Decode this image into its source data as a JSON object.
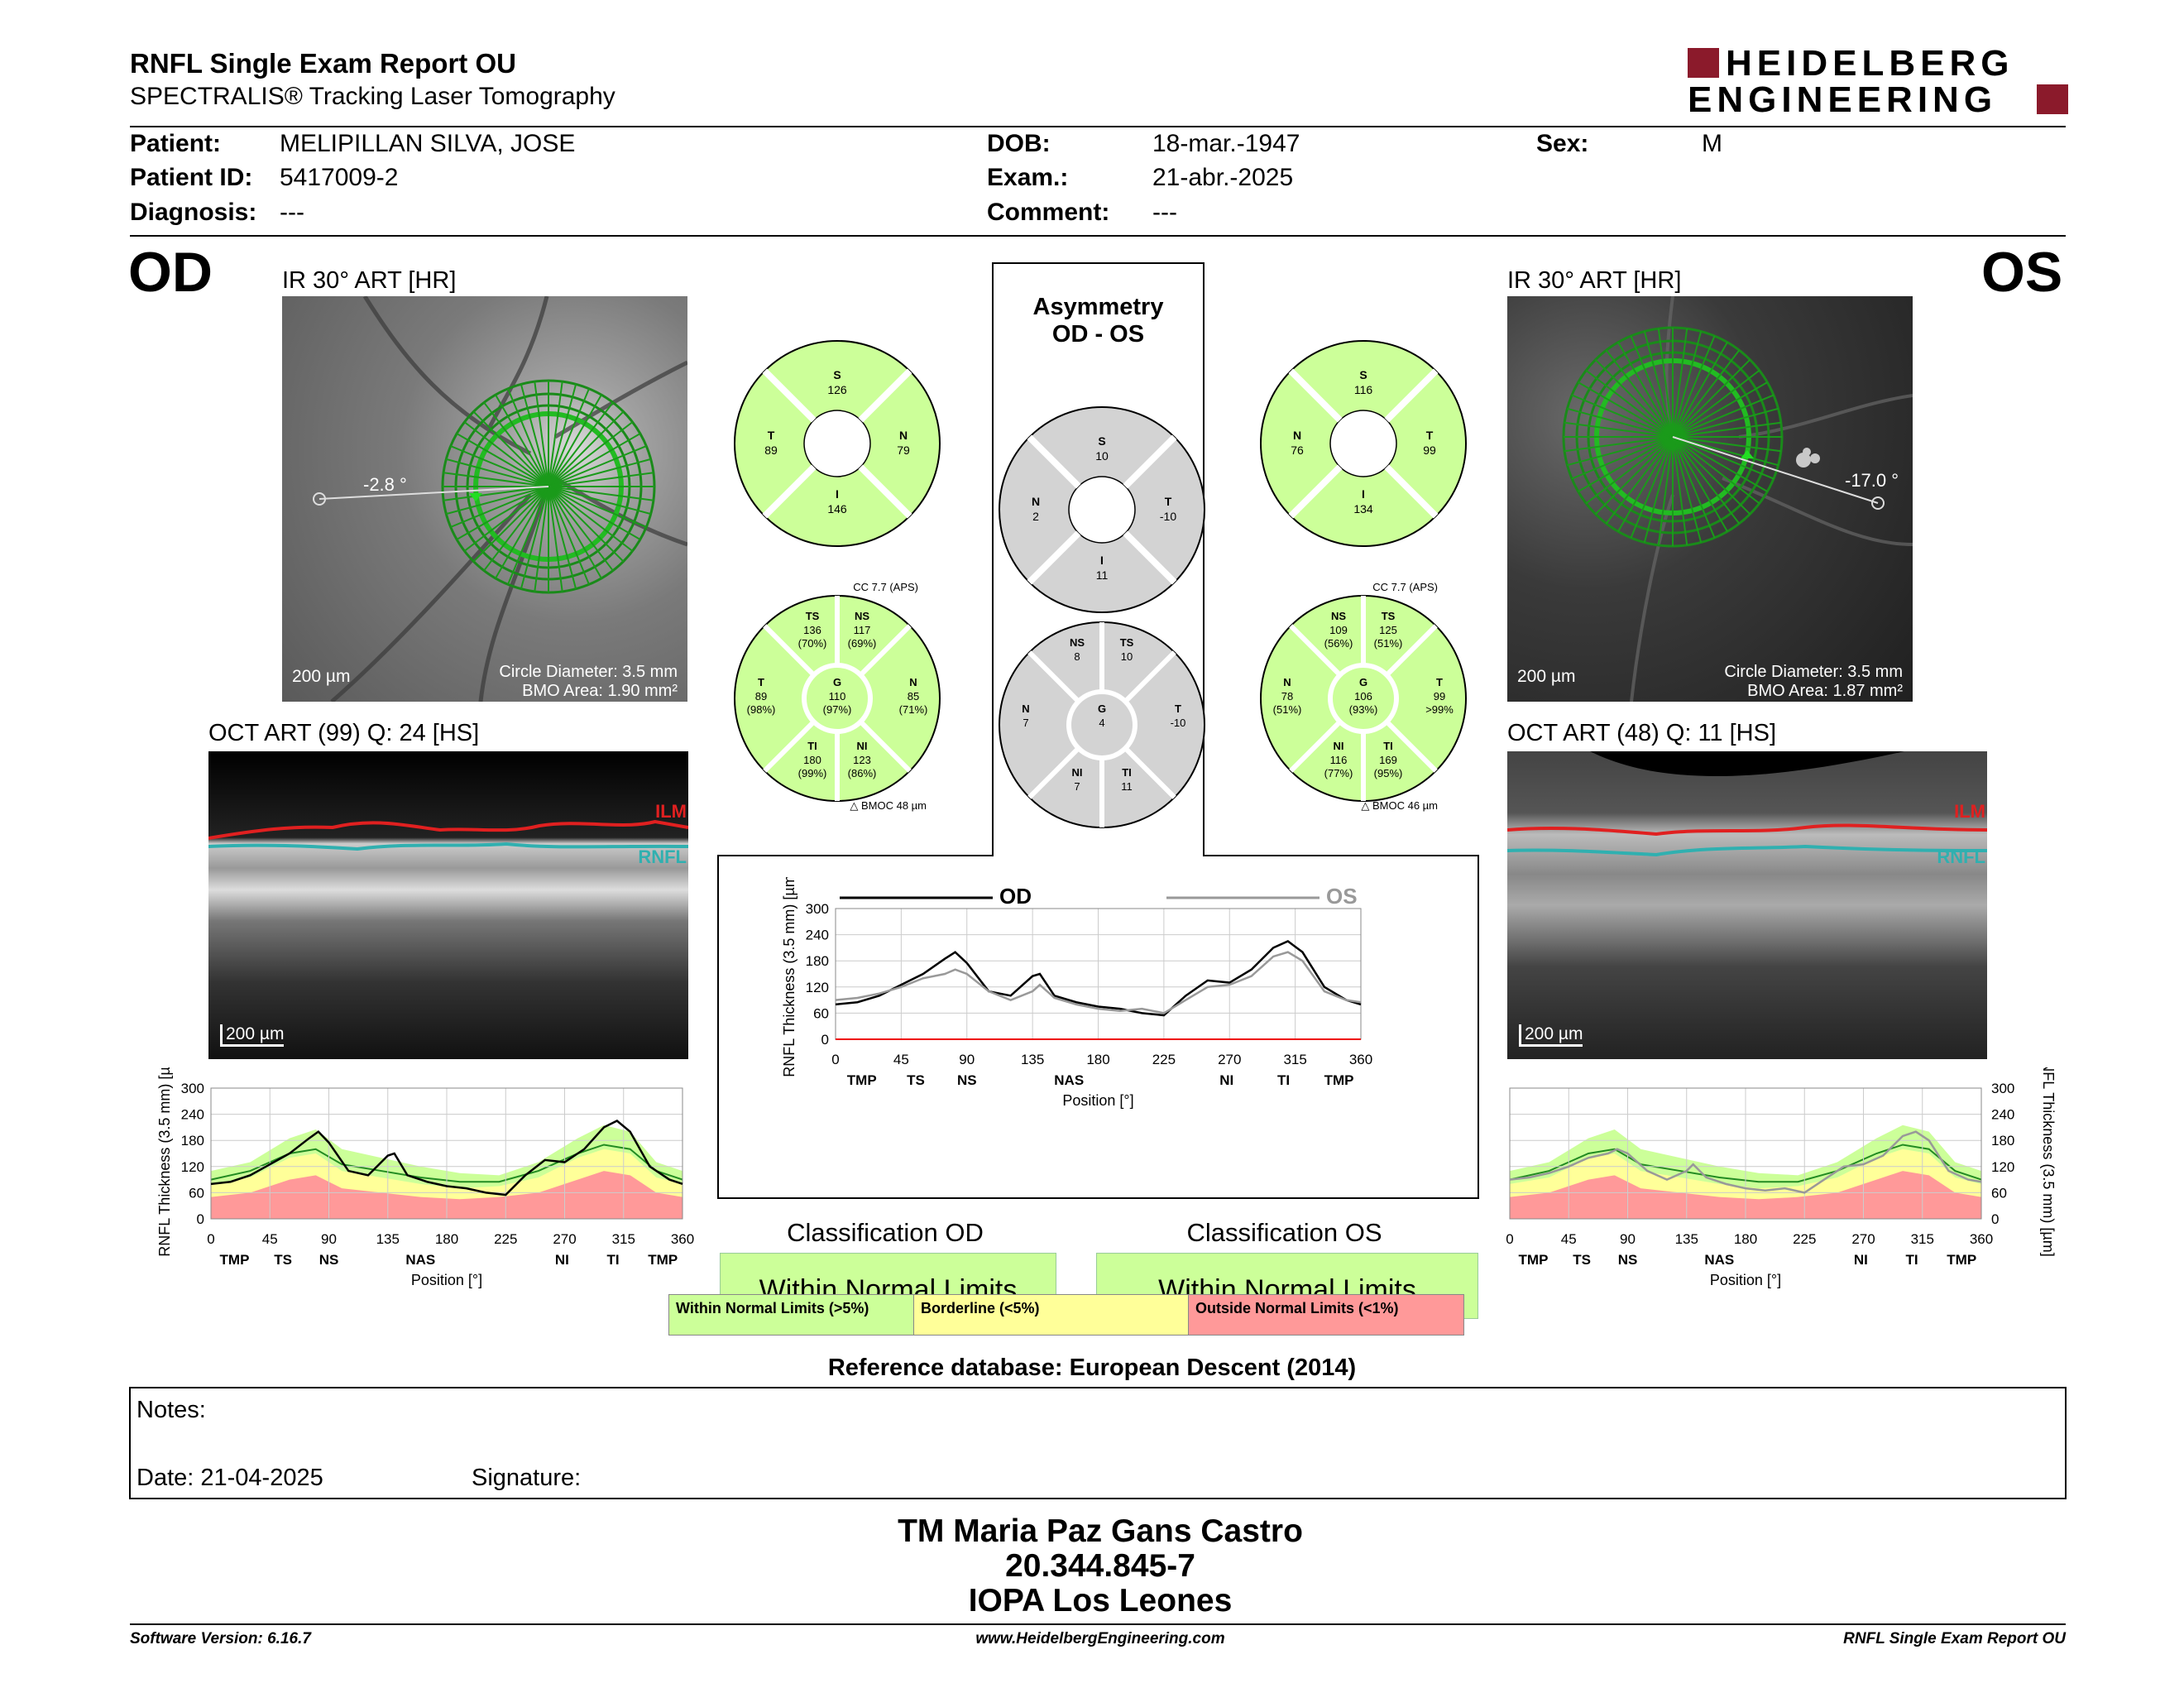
{
  "header": {
    "title": "RNFL Single Exam Report OU",
    "subtitle": "SPECTRALIS® Tracking Laser Tomography",
    "logo_line1": "HEIDELBERG",
    "logo_line2": "ENGINEERING"
  },
  "patient": {
    "patient_label": "Patient:",
    "patient_value": "MELIPILLAN SILVA, JOSE",
    "id_label": "Patient ID:",
    "id_value": "5417009-2",
    "diag_label": "Diagnosis:",
    "diag_value": "---",
    "dob_label": "DOB:",
    "dob_value": "18-mar.-1947",
    "exam_label": "Exam.:",
    "exam_value": "21-abr.-2025",
    "comment_label": "Comment:",
    "comment_value": "---",
    "sex_label": "Sex:",
    "sex_value": "M"
  },
  "od": {
    "eye": "OD",
    "ir_title": "IR 30° ART [HR]",
    "angle": "-2.8 °",
    "scale": "200 µm",
    "circle_diameter": "Circle Diameter: 3.5 mm",
    "bmo_area": "BMO Area: 1.90 mm²",
    "oct_title": "OCT ART (99) Q: 24 [HS]",
    "oct_scale": "200 µm",
    "ilm": "ILM",
    "rnfl": "RNFL",
    "quad": {
      "S": "126",
      "T": "89",
      "N": "79",
      "I": "146"
    },
    "sectors": {
      "cc": "CC 7.7 (APS)",
      "TS": [
        "136",
        "(70%)"
      ],
      "NS": [
        "117",
        "(69%)"
      ],
      "T": [
        "89",
        "(98%)"
      ],
      "G": [
        "110",
        "(97%)"
      ],
      "N": [
        "85",
        "(71%)"
      ],
      "TI": [
        "180",
        "(99%)"
      ],
      "NI": [
        "123",
        "(86%)"
      ],
      "bmoc": "BMOC 48 µm"
    }
  },
  "os": {
    "eye": "OS",
    "ir_title": "IR 30° ART [HR]",
    "angle": "-17.0 °",
    "scale": "200 µm",
    "circle_diameter": "Circle Diameter: 3.5 mm",
    "bmo_area": "BMO Area: 1.87 mm²",
    "oct_title": "OCT ART (48) Q: 11 [HS]",
    "oct_scale": "200 µm",
    "ilm": "ILM",
    "rnfl": "RNFL",
    "quad": {
      "S": "116",
      "T": "99",
      "N": "76",
      "I": "134"
    },
    "sectors": {
      "cc": "CC 7.7 (APS)",
      "NS": [
        "109",
        "(56%)"
      ],
      "TS": [
        "125",
        "(51%)"
      ],
      "N": [
        "78",
        "(51%)"
      ],
      "G": [
        "106",
        "(93%)"
      ],
      "T": [
        "99",
        ">99%"
      ],
      "NI": [
        "116",
        "(77%)"
      ],
      "TI": [
        "169",
        "(95%)"
      ],
      "bmoc": "BMOC 46 µm"
    }
  },
  "asymmetry": {
    "title1": "Asymmetry",
    "title2": "OD - OS",
    "quad": {
      "S": "10",
      "N": "2",
      "T": "-10",
      "I": "11"
    },
    "sectors": {
      "NS": "8",
      "TS": "10",
      "N": "7",
      "G": "4",
      "T": "-10",
      "NI": "7",
      "TI": "11"
    },
    "legend_od": "OD",
    "legend_os": "OS"
  },
  "graph": {
    "ylabel": "RNFL Thickness (3.5 mm) [µm]",
    "xlabel": "Position [°]",
    "yticks": [
      "0",
      "60",
      "120",
      "180",
      "240",
      "300"
    ],
    "xticks": [
      "0",
      "45",
      "90",
      "135",
      "180",
      "225",
      "270",
      "315",
      "360"
    ],
    "sector_labels": [
      "TMP",
      "TS",
      "NS",
      "NAS",
      "NI",
      "TI",
      "TMP"
    ]
  },
  "chart_data": [
    {
      "type": "line",
      "title": "OD",
      "xlabel": "Position [°]",
      "ylabel": "RNFL Thickness (3.5 mm) [µm]",
      "ylim": [
        0,
        300
      ],
      "xlim": [
        0,
        360
      ],
      "x": [
        0,
        15,
        30,
        45,
        60,
        75,
        82,
        90,
        105,
        120,
        135,
        140,
        150,
        165,
        180,
        195,
        210,
        225,
        240,
        255,
        270,
        285,
        300,
        310,
        320,
        335,
        350,
        360
      ],
      "series": [
        {
          "name": "OD",
          "values": [
            80,
            85,
            100,
            125,
            150,
            185,
            200,
            175,
            110,
            100,
            145,
            150,
            100,
            85,
            75,
            70,
            60,
            55,
            100,
            135,
            130,
            160,
            210,
            225,
            200,
            120,
            90,
            80
          ]
        },
        {
          "name": "OS",
          "values": [
            90,
            95,
            105,
            120,
            140,
            150,
            160,
            150,
            110,
            90,
            110,
            125,
            95,
            80,
            70,
            65,
            70,
            60,
            90,
            120,
            125,
            145,
            190,
            200,
            180,
            110,
            90,
            85
          ]
        }
      ],
      "grid": true,
      "legend": "top"
    }
  ],
  "classification": {
    "od_title": "Classification OD",
    "od_value": "Within Normal Limits",
    "os_title": "Classification OS",
    "os_value": "Within Normal Limits",
    "legend_wnl": "Within Normal Limits (>5%)",
    "legend_bl": "Borderline (<5%)",
    "legend_onl": "Outside Normal Limits (<1%)",
    "colors": {
      "wnl": "#ccff99",
      "bl": "#ffff99",
      "onl": "#ff9999"
    }
  },
  "reference": "Reference database: European Descent (2014)",
  "notes": {
    "label": "Notes:",
    "date": "Date: 21-04-2025",
    "signature": "Signature:"
  },
  "stamp": {
    "line1": "TM Maria Paz Gans Castro",
    "line2": "20.344.845-7",
    "line3": "IOPA Los Leones"
  },
  "footer": {
    "left": "Software Version: 6.16.7",
    "center": "www.HeidelbergEngineering.com",
    "right": "RNFL Single Exam Report OU"
  }
}
